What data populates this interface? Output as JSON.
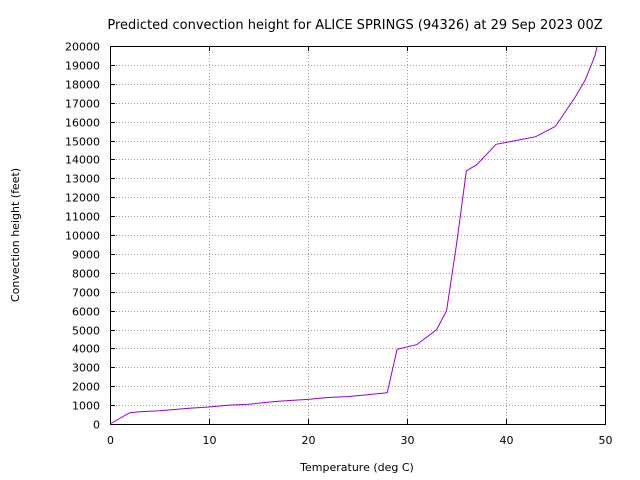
{
  "chart_data": {
    "type": "line",
    "title": "Predicted convection height for ALICE SPRINGS (94326) at 29 Sep 2023 00Z",
    "xlabel": "Temperature (deg C)",
    "ylabel": "Convection height (feet)",
    "xlim": [
      0,
      50
    ],
    "ylim": [
      0,
      20000
    ],
    "x_ticks": [
      0,
      10,
      20,
      30,
      40,
      50
    ],
    "y_ticks": [
      0,
      1000,
      2000,
      3000,
      4000,
      5000,
      6000,
      7000,
      8000,
      9000,
      10000,
      11000,
      12000,
      13000,
      14000,
      15000,
      16000,
      17000,
      18000,
      19000,
      20000
    ],
    "grid": true,
    "series": [
      {
        "color": "#9400d3",
        "x": [
          0,
          2,
          3,
          5,
          8,
          10,
          12,
          14,
          17,
          20,
          22,
          24,
          26,
          28,
          29,
          31,
          33,
          34,
          35,
          36,
          37,
          39,
          41,
          43,
          45,
          47,
          48,
          49,
          49.2
        ],
        "y": [
          0,
          600,
          650,
          700,
          830,
          900,
          1000,
          1050,
          1200,
          1300,
          1400,
          1450,
          1550,
          1650,
          3950,
          4200,
          5000,
          6000,
          9500,
          13400,
          13700,
          14800,
          15000,
          15200,
          15750,
          17300,
          18200,
          19500,
          20000
        ]
      }
    ]
  }
}
